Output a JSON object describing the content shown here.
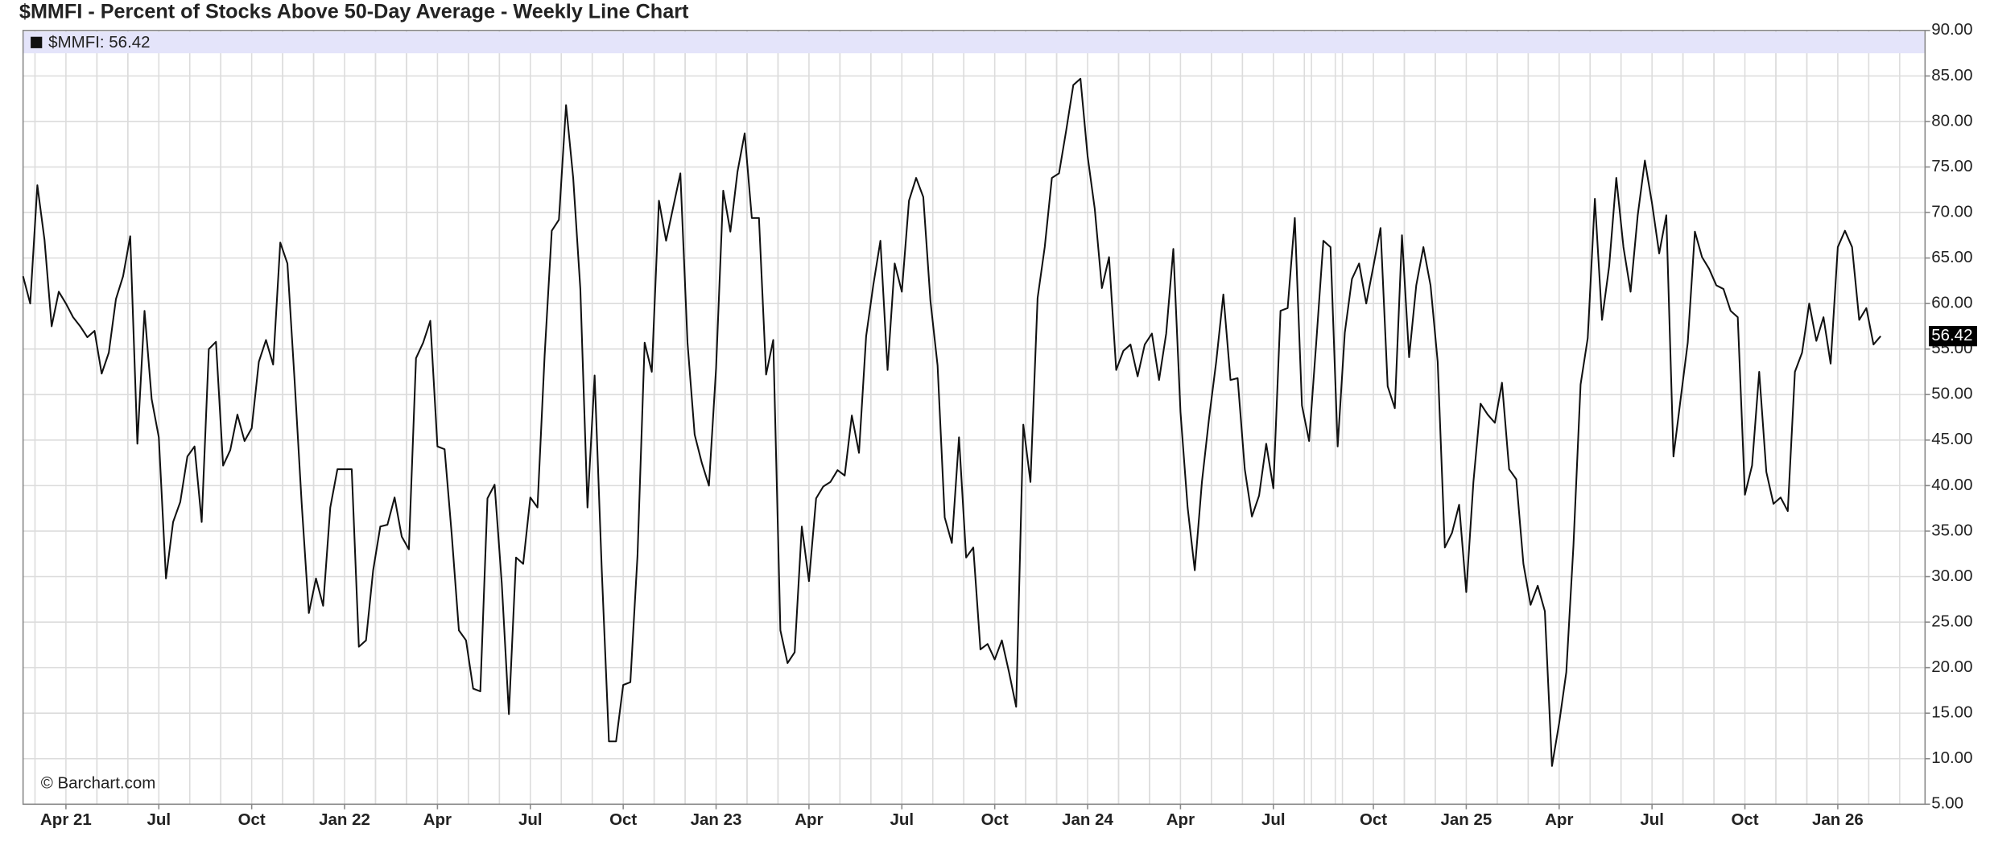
{
  "chart_data": {
    "type": "line",
    "title": "$MMFI - Percent of Stocks Above 50-Day Average - Weekly Line Chart",
    "credit": "© Barchart.com",
    "last_label": "56.42",
    "categories": [
      null,
      null,
      null,
      null,
      null,
      null,
      "Apr 21",
      null,
      null,
      null,
      null,
      null,
      null,
      null,
      null,
      null,
      null,
      null,
      null,
      "Jul",
      null,
      null,
      null,
      null,
      null,
      null,
      null,
      null,
      null,
      null,
      null,
      null,
      "Oct",
      null,
      null,
      null,
      null,
      null,
      null,
      null,
      null,
      null,
      null,
      null,
      null,
      "Jan 22",
      null,
      null,
      null,
      null,
      null,
      null,
      null,
      null,
      null,
      null,
      null,
      null,
      "Apr",
      null,
      null,
      null,
      null,
      null,
      null,
      null,
      null,
      null,
      null,
      null,
      null,
      "Jul",
      null,
      null,
      null,
      null,
      null,
      null,
      null,
      null,
      null,
      null,
      null,
      null,
      "Oct",
      null,
      null,
      null,
      null,
      null,
      null,
      null,
      null,
      null,
      null,
      null,
      null,
      "Jan 23",
      null,
      null,
      null,
      null,
      null,
      null,
      null,
      null,
      null,
      null,
      null,
      null,
      "Apr",
      null,
      null,
      null,
      null,
      null,
      null,
      null,
      null,
      null,
      null,
      null,
      null,
      "Jul",
      null,
      null,
      null,
      null,
      null,
      null,
      null,
      null,
      null,
      null,
      null,
      null,
      "Oct",
      null,
      null,
      null,
      null,
      null,
      null,
      null,
      null,
      null,
      null,
      null,
      null,
      "Jan 24",
      null,
      null,
      null,
      null,
      null,
      null,
      null,
      null,
      null,
      null,
      null,
      null,
      "Apr",
      null,
      null,
      null,
      null,
      null,
      null,
      null,
      null,
      null,
      null,
      null,
      null,
      "Jul",
      null,
      null,
      null,
      null,
      null,
      null,
      null,
      null,
      null,
      null,
      null,
      null,
      null,
      "Oct",
      null,
      null,
      null,
      null,
      null,
      null,
      null,
      null,
      null,
      null,
      null,
      null,
      "Jan 25",
      null,
      null,
      null,
      null,
      null,
      null,
      null,
      null,
      null,
      null,
      null,
      null,
      "Apr",
      null,
      null,
      null,
      null,
      null,
      null,
      null,
      null,
      null,
      null,
      null,
      null,
      "Jul",
      null,
      null,
      null,
      null,
      null,
      null,
      null,
      null,
      null,
      null,
      null,
      null,
      "Oct",
      null,
      null,
      null,
      null,
      null,
      null,
      null,
      null,
      null,
      null,
      null,
      null,
      "Jan 26",
      null,
      null,
      null,
      null,
      null,
      null
    ],
    "series": [
      {
        "name": "$MMFI: 56.42",
        "color": "#111111",
        "values": [
          63,
          60,
          73,
          67,
          57.5,
          61.3,
          60,
          58.5,
          57.5,
          56.3,
          57,
          52.3,
          54.6,
          60.5,
          63,
          67.4,
          44.6,
          59.2,
          49.5,
          45.3,
          29.8,
          36,
          38.2,
          43.2,
          44.3,
          36,
          55,
          55.8,
          42.2,
          43.9,
          47.8,
          44.9,
          46.3,
          53.6,
          56,
          53.3,
          66.7,
          64.4,
          51.6,
          38,
          26,
          29.8,
          26.8,
          37.6,
          41.8,
          41.8,
          41.8,
          22.3,
          23,
          30.7,
          35.5,
          35.7,
          38.7,
          34.4,
          33,
          54,
          55.7,
          58.1,
          44.3,
          44,
          34.6,
          24.1,
          23,
          17.7,
          17.4,
          38.6,
          40.1,
          29.3,
          14.9,
          32.1,
          31.4,
          38.7,
          37.6,
          54.3,
          68,
          69.2,
          81.8,
          73.8,
          61.6,
          37.6,
          52.1,
          30.7,
          11.9,
          11.9,
          18.1,
          18.4,
          32.3,
          55.7,
          52.5,
          71.3,
          66.9,
          70.6,
          74.3,
          55.7,
          45.6,
          42.5,
          40,
          52.9,
          72.4,
          67.9,
          74.5,
          78.7,
          69.4,
          69.4,
          52.2,
          56,
          24.1,
          20.5,
          21.7,
          35.5,
          29.5,
          38.6,
          39.9,
          40.4,
          41.7,
          41.1,
          47.7,
          43.6,
          56.4,
          62,
          66.9,
          52.7,
          64.4,
          61.3,
          71.3,
          73.8,
          71.7,
          60.3,
          53.2,
          36.5,
          33.7,
          45.3,
          32.1,
          33.2,
          22,
          22.6,
          20.9,
          23,
          19.5,
          15.7,
          46.7,
          40.4,
          60.6,
          66.2,
          73.8,
          74.3,
          79,
          84,
          84.7,
          76.2,
          70.4,
          61.7,
          65.1,
          52.7,
          54.8,
          55.5,
          52,
          55.5,
          56.7,
          51.6,
          56.7,
          66,
          48.1,
          37.6,
          30.7,
          40.4,
          47.4,
          53.6,
          61,
          51.6,
          51.8,
          41.8,
          36.6,
          38.9,
          44.6,
          39.7,
          59.2,
          59.5,
          69.4,
          48.8,
          44.9,
          55.7,
          66.9,
          66.2,
          44.3,
          56.8,
          62.7,
          64.4,
          60,
          64.1,
          68.3,
          50.9,
          48.5,
          67.5,
          54.1,
          62,
          66.2,
          62,
          53.6,
          33.2,
          34.8,
          37.9,
          28.3,
          40.4,
          49,
          47.8,
          46.9,
          51.3,
          41.8,
          40.7,
          31.4,
          26.9,
          29,
          26.2,
          9.2,
          13.9,
          19.5,
          33.4,
          51.1,
          56.2,
          71.5,
          58.2,
          64.1,
          73.8,
          66.2,
          61.3,
          69.7,
          75.7,
          71,
          65.5,
          69.7,
          43.2,
          49.5,
          55.7,
          67.9,
          65.1,
          63.8,
          62,
          61.6,
          59.2,
          58.5,
          39,
          42.2,
          52.5,
          41.5,
          38,
          38.7,
          37.2,
          52.5,
          54.6,
          60,
          55.9,
          58.5,
          53.4,
          66.2,
          68,
          66.2,
          58.2,
          59.5,
          55.5,
          56.42
        ]
      }
    ],
    "ylim": [
      5,
      90
    ],
    "yticks": [
      {
        "value": 5,
        "label": "5.00"
      },
      {
        "value": 10,
        "label": "10.00"
      },
      {
        "value": 15,
        "label": "15.00"
      },
      {
        "value": 20,
        "label": "20.00"
      },
      {
        "value": 25,
        "label": "25.00"
      },
      {
        "value": 30,
        "label": "30.00"
      },
      {
        "value": 35,
        "label": "35.00"
      },
      {
        "value": 40,
        "label": "40.00"
      },
      {
        "value": 45,
        "label": "45.00"
      },
      {
        "value": 50,
        "label": "50.00"
      },
      {
        "value": 55,
        "label": "55.00"
      },
      {
        "value": 60,
        "label": "60.00"
      },
      {
        "value": 65,
        "label": "65.00"
      },
      {
        "value": 70,
        "label": "70.00"
      },
      {
        "value": 75,
        "label": "75.00"
      },
      {
        "value": 80,
        "label": "80.00"
      },
      {
        "value": 85,
        "label": "85.00"
      },
      {
        "value": 90,
        "label": "90.00"
      }
    ],
    "grid": true
  }
}
